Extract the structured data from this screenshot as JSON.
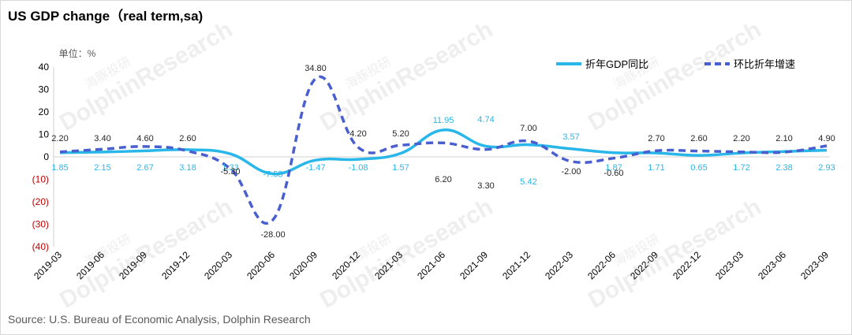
{
  "title": "US GDP change（real term,sa)",
  "source": "Source: U.S. Bureau of Economic Analysis, Dolphin Research",
  "watermark": "DolphinResearch",
  "watermark_cn": "海豚投研",
  "colors": {
    "annualized": "#29b6e8",
    "qoq": "#4a5fcf",
    "negative_tick": "#c00000",
    "axis_text": "#000000"
  },
  "chart_data": {
    "type": "line",
    "title": "US GDP change（real term,sa)",
    "unit_label": "单位：%",
    "ylim": [
      -40,
      40
    ],
    "yticks": [
      40,
      30,
      20,
      10,
      0,
      -10,
      -20,
      -30,
      -40
    ],
    "ytick_labels": [
      "40",
      "30",
      "20",
      "10",
      "0",
      "(10)",
      "(20)",
      "(30)",
      "(40)"
    ],
    "grid": false,
    "legend_position": "top-right",
    "x": [
      "2019-03",
      "2019-06",
      "2019-09",
      "2019-12",
      "2020-03",
      "2020-06",
      "2020-09",
      "2020-12",
      "2021-03",
      "2021-06",
      "2021-09",
      "2021-12",
      "2022-03",
      "2022-06",
      "2022-09",
      "2022-12",
      "2023-03",
      "2023-06",
      "2023-09"
    ],
    "series": [
      {
        "name": "折年GDP同比",
        "style": "solid",
        "values": [
          1.85,
          2.15,
          2.67,
          3.18,
          1.33,
          -7.53,
          -1.47,
          -1.08,
          1.57,
          11.95,
          4.74,
          5.42,
          3.57,
          1.87,
          1.71,
          0.65,
          1.72,
          2.38,
          2.93
        ],
        "labels": [
          "1.85",
          "2.15",
          "2.67",
          "3.18",
          "1.33",
          "-7.53",
          "-1.47",
          "-1.08",
          "1.57",
          "11.95",
          "4.74",
          "5.42",
          "3.57",
          "1.87",
          "1.71",
          "0.65",
          "1.72",
          "2.38",
          "2.93"
        ]
      },
      {
        "name": "环比折年增速",
        "style": "dashed",
        "values": [
          2.2,
          3.4,
          4.6,
          2.6,
          -5.3,
          -28.0,
          34.8,
          4.2,
          5.2,
          6.2,
          3.3,
          7.0,
          -2.0,
          -0.6,
          2.7,
          2.6,
          2.2,
          2.1,
          4.9
        ],
        "labels": [
          "2.20",
          "3.40",
          "4.60",
          "2.60",
          "-5.30",
          "-28.00",
          "34.80",
          "4.20",
          "5.20",
          "6.20",
          "3.30",
          "7.00",
          "-2.00",
          "-0.60",
          "2.70",
          "2.60",
          "2.20",
          "2.10",
          "4.90"
        ]
      }
    ]
  }
}
